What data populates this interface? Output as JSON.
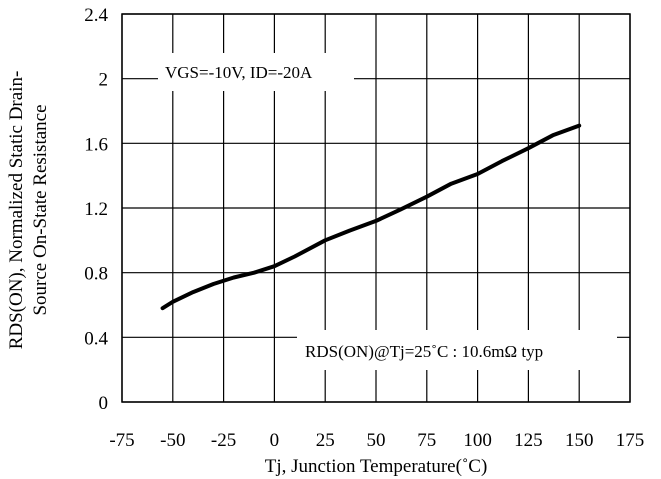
{
  "chart_data": {
    "type": "line",
    "xlabel": "Tj, Junction Temperature(˚C)",
    "ylabel_line1": "RDS(ON), Normalized Static Drain-",
    "ylabel_line2": "Source On-State Resistance",
    "xlim": [
      -75,
      175
    ],
    "ylim": [
      0,
      2.4
    ],
    "x_ticks": [
      "-75",
      "-50",
      "-25",
      "0",
      "25",
      "50",
      "75",
      "100",
      "125",
      "150",
      "175"
    ],
    "y_ticks": [
      "0",
      "0.4",
      "0.8",
      "1.2",
      "1.6",
      "2",
      "2.4"
    ],
    "grid": true,
    "series": [
      {
        "x": [
          -55,
          -50,
          -40,
          -30,
          -20,
          -10,
          0,
          10,
          25,
          37,
          50,
          62,
          75,
          87,
          100,
          112,
          125,
          137,
          150
        ],
        "y": [
          0.58,
          0.62,
          0.68,
          0.73,
          0.77,
          0.8,
          0.84,
          0.9,
          1.0,
          1.06,
          1.12,
          1.19,
          1.27,
          1.35,
          1.41,
          1.49,
          1.57,
          1.65,
          1.71
        ]
      }
    ],
    "annotations": {
      "conditions": "VGS=-10V, ID=-20A",
      "typical": "RDS(ON)@Tj=25˚C : 10.6mΩ  typ"
    },
    "colors": {
      "line": "#000000",
      "grid": "#000000",
      "background": "#ffffff"
    }
  }
}
